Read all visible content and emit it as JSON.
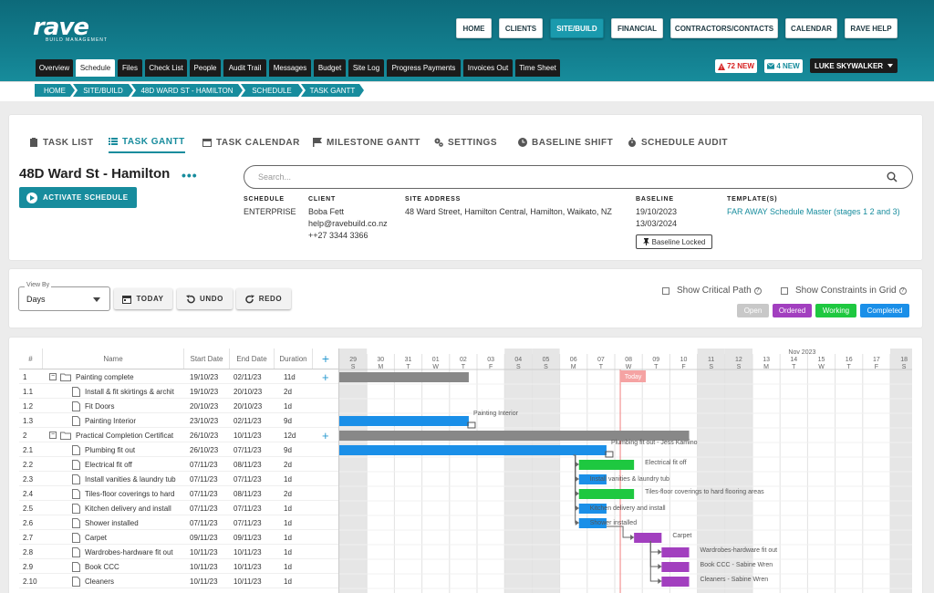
{
  "brand": {
    "logo_text": "rave",
    "logo_sub": "BUILD MANAGEMENT"
  },
  "nav": {
    "items": [
      "HOME",
      "CLIENTS",
      "SITE/BUILD",
      "FINANCIAL",
      "CONTRACTORS/CONTACTS",
      "CALENDAR",
      "RAVE HELP"
    ],
    "active": "SITE/BUILD"
  },
  "subnav": {
    "items": [
      "Overview",
      "Schedule",
      "Files",
      "Check List",
      "People",
      "Audit Trail",
      "Messages",
      "Budget",
      "Site Log",
      "Progress Payments",
      "Invoices Out",
      "Time Sheet"
    ],
    "active": "Schedule"
  },
  "alerts": {
    "new_alerts": "72 NEW",
    "new_messages": "4 NEW",
    "user": "LUKE SKYWALKER"
  },
  "breadcrumb": [
    "HOME",
    "SITE/BUILD",
    "48D WARD ST - HAMILTON",
    "SCHEDULE",
    "TASK GANTT"
  ],
  "tabs": [
    "TASK LIST",
    "TASK GANTT",
    "TASK CALENDAR",
    "MILESTONE GANTT",
    "SETTINGS",
    "BASELINE SHIFT",
    "SCHEDULE AUDIT"
  ],
  "active_tab": "TASK GANTT",
  "project": {
    "title": "48D Ward St - Hamilton",
    "activate_label": "ACTIVATE SCHEDULE",
    "search_placeholder": "Search...",
    "schedule_label": "SCHEDULE",
    "schedule_value": "ENTERPRISE",
    "client_label": "CLIENT",
    "client_name": "Boba Fett",
    "client_email": "help@ravebuild.co.nz",
    "client_phone": "++27 3344 3366",
    "address_label": "SITE ADDRESS",
    "address_value": "48 Ward Street, Hamilton Central, Hamilton, Waikato, NZ",
    "baseline_label": "BASELINE",
    "baseline_start": "19/10/2023",
    "baseline_end": "13/03/2024",
    "baseline_locked": "Baseline Locked",
    "template_label": "TEMPLATE(S)",
    "template_value": "FAR AWAY Schedule Master (stages 1 2 and 3)"
  },
  "toolbar": {
    "viewby_label": "View By",
    "viewby_value": "Days",
    "today": "TODAY",
    "undo": "UNDO",
    "redo": "REDO",
    "critical_path": "Show Critical Path",
    "constraints": "Show Constraints in Grid"
  },
  "legend": [
    {
      "label": "Open",
      "color": "#c8c8c8"
    },
    {
      "label": "Ordered",
      "color": "#a23fbf"
    },
    {
      "label": "Working",
      "color": "#1ec840"
    },
    {
      "label": "Completed",
      "color": "#1a8fe8"
    }
  ],
  "colors": {
    "accent": "#178c9d",
    "open": "#c8c8c8",
    "ordered": "#a23fbf",
    "working": "#1ec840",
    "completed": "#1a8fe8",
    "summary": "#888888",
    "today": "#f08080"
  },
  "grid_columns": [
    "#",
    "Name",
    "Start Date",
    "End Date",
    "Duration"
  ],
  "tasks": [
    {
      "id": "1",
      "name": "Painting complete",
      "start": "19/10/23",
      "end": "02/11/23",
      "dur": "11d",
      "summary": true
    },
    {
      "id": "1.1",
      "name": "Install & fit skirtings & archit",
      "start": "19/10/23",
      "end": "20/10/23",
      "dur": "2d"
    },
    {
      "id": "1.2",
      "name": "Fit Doors",
      "start": "20/10/23",
      "end": "20/10/23",
      "dur": "1d"
    },
    {
      "id": "1.3",
      "name": "Painting Interior",
      "start": "23/10/23",
      "end": "02/11/23",
      "dur": "9d"
    },
    {
      "id": "2",
      "name": "Practical Completion Certificat",
      "start": "26/10/23",
      "end": "10/11/23",
      "dur": "12d",
      "summary": true
    },
    {
      "id": "2.1",
      "name": "Plumbing fit out",
      "start": "26/10/23",
      "end": "07/11/23",
      "dur": "9d"
    },
    {
      "id": "2.2",
      "name": "Electrical fit off",
      "start": "07/11/23",
      "end": "08/11/23",
      "dur": "2d"
    },
    {
      "id": "2.3",
      "name": "Install vanities & laundry tub",
      "start": "07/11/23",
      "end": "07/11/23",
      "dur": "1d"
    },
    {
      "id": "2.4",
      "name": "Tiles-floor coverings to hard",
      "start": "07/11/23",
      "end": "08/11/23",
      "dur": "2d"
    },
    {
      "id": "2.5",
      "name": "Kitchen delivery and install",
      "start": "07/11/23",
      "end": "07/11/23",
      "dur": "1d"
    },
    {
      "id": "2.6",
      "name": "Shower installed",
      "start": "07/11/23",
      "end": "07/11/23",
      "dur": "1d"
    },
    {
      "id": "2.7",
      "name": "Carpet",
      "start": "09/11/23",
      "end": "09/11/23",
      "dur": "1d"
    },
    {
      "id": "2.8",
      "name": "Wardrobes-hardware fit out",
      "start": "10/11/23",
      "end": "10/11/23",
      "dur": "1d"
    },
    {
      "id": "2.9",
      "name": "Book CCC",
      "start": "10/11/23",
      "end": "10/11/23",
      "dur": "1d"
    },
    {
      "id": "2.10",
      "name": "Cleaners",
      "start": "10/11/23",
      "end": "10/11/23",
      "dur": "1d"
    }
  ],
  "timeline": {
    "month_label": "Nov 2023",
    "today_label": "Today",
    "days": [
      {
        "d": "29",
        "w": "S"
      },
      {
        "d": "30",
        "w": "M"
      },
      {
        "d": "31",
        "w": "T"
      },
      {
        "d": "01",
        "w": "W"
      },
      {
        "d": "02",
        "w": "T"
      },
      {
        "d": "03",
        "w": "F"
      },
      {
        "d": "04",
        "w": "S"
      },
      {
        "d": "05",
        "w": "S"
      },
      {
        "d": "06",
        "w": "M"
      },
      {
        "d": "07",
        "w": "T"
      },
      {
        "d": "08",
        "w": "W"
      },
      {
        "d": "09",
        "w": "T"
      },
      {
        "d": "10",
        "w": "F"
      },
      {
        "d": "11",
        "w": "S"
      },
      {
        "d": "12",
        "w": "S"
      },
      {
        "d": "13",
        "w": "M"
      },
      {
        "d": "14",
        "w": "T"
      },
      {
        "d": "15",
        "w": "W"
      },
      {
        "d": "16",
        "w": "T"
      },
      {
        "d": "17",
        "w": "F"
      },
      {
        "d": "18",
        "w": "S"
      }
    ]
  },
  "bars": [
    {
      "row": 0,
      "start_day": 0,
      "end_day": 4.7,
      "kind": "summary",
      "label": ""
    },
    {
      "row": 3,
      "start_day": 0,
      "end_day": 4.7,
      "kind": "completed",
      "label": "Painting Interior"
    },
    {
      "row": 4,
      "start_day": 0,
      "end_day": 12.7,
      "kind": "summary",
      "label": ""
    },
    {
      "row": 5,
      "start_day": 0,
      "end_day": 9.7,
      "kind": "completed",
      "label": "Plumbing fit out - Jess Kamino"
    },
    {
      "row": 6,
      "start_day": 8.7,
      "end_day": 10.7,
      "kind": "working",
      "label": "Electrical fit off"
    },
    {
      "row": 7,
      "start_day": 8.7,
      "end_day": 9.7,
      "kind": "completed",
      "label": "Install vanities & laundry tub"
    },
    {
      "row": 8,
      "start_day": 8.7,
      "end_day": 10.7,
      "kind": "working",
      "label": "Tiles-floor coverings to hard flooring areas"
    },
    {
      "row": 9,
      "start_day": 8.7,
      "end_day": 9.7,
      "kind": "completed",
      "label": "Kitchen delivery and install"
    },
    {
      "row": 10,
      "start_day": 8.7,
      "end_day": 9.7,
      "kind": "completed",
      "label": "Shower installed"
    },
    {
      "row": 11,
      "start_day": 10.7,
      "end_day": 11.7,
      "kind": "ordered",
      "label": "Carpet"
    },
    {
      "row": 12,
      "start_day": 11.7,
      "end_day": 12.7,
      "kind": "ordered",
      "label": "Wardrobes-hardware fit out"
    },
    {
      "row": 13,
      "start_day": 11.7,
      "end_day": 12.7,
      "kind": "ordered",
      "label": "Book CCC - Sabine Wren"
    },
    {
      "row": 14,
      "start_day": 11.7,
      "end_day": 12.7,
      "kind": "ordered",
      "label": "Cleaners - Sabine Wren"
    }
  ],
  "today_day": 10.2
}
